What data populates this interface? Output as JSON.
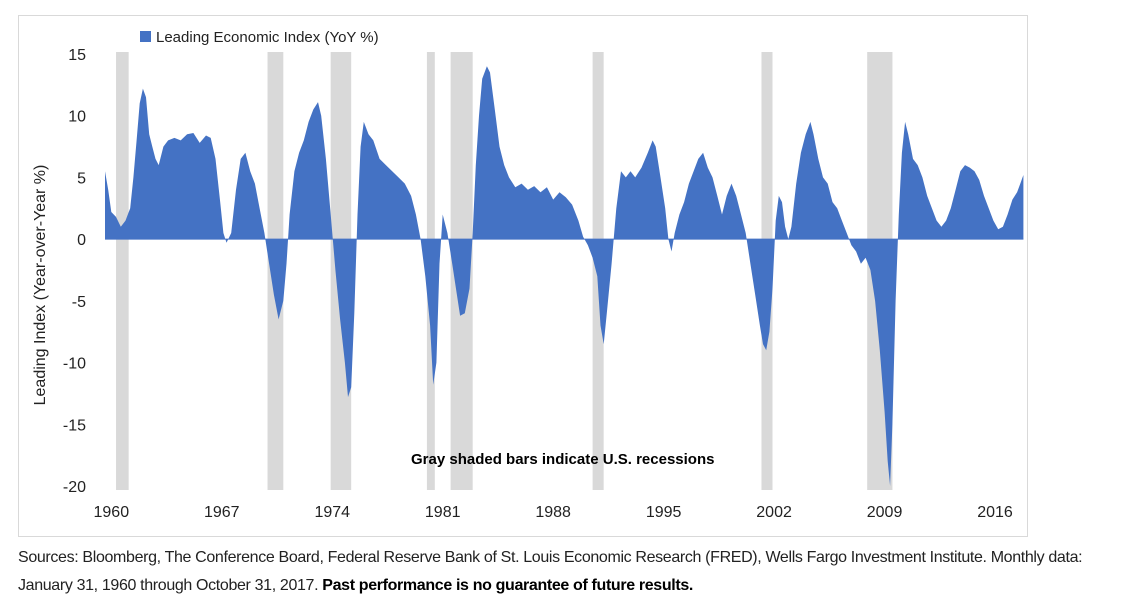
{
  "chart_data": {
    "type": "area",
    "title": "",
    "legend": {
      "label": "Leading Economic Index (YoY %)",
      "color": "#4472c4",
      "placement": "top-left"
    },
    "ylabel": "Leading Index (Year-over-Year %)",
    "xlabel": "",
    "xlim": [
      1959.6,
      2017.9
    ],
    "ylim": [
      -20,
      15
    ],
    "yticks": [
      15,
      10,
      5,
      0,
      -5,
      -10,
      -15,
      -20
    ],
    "xticks": [
      "1960",
      "1967",
      "1974",
      "1981",
      "1988",
      "1995",
      "2002",
      "2009",
      "2016"
    ],
    "xtick_values": [
      1960,
      1967,
      1974,
      1981,
      1988,
      1995,
      2002,
      2009,
      2016
    ],
    "grid": false,
    "annotation": "Gray shaded bars indicate U.S. recessions",
    "recession_color": "#d9d9d9",
    "recessions": [
      [
        1960.3,
        1961.1
      ],
      [
        1969.9,
        1970.9
      ],
      [
        1973.9,
        1975.2
      ],
      [
        1980.0,
        1980.5
      ],
      [
        1981.5,
        1982.9
      ],
      [
        1990.5,
        1991.2
      ],
      [
        2001.2,
        2001.9
      ],
      [
        2007.9,
        2009.5
      ]
    ],
    "series": [
      {
        "name": "Leading Economic Index (YoY %)",
        "color": "#4472c4",
        "points": [
          [
            1959.6,
            5.5
          ],
          [
            1959.8,
            4.0
          ],
          [
            1960.0,
            2.2
          ],
          [
            1960.3,
            1.8
          ],
          [
            1960.6,
            1.0
          ],
          [
            1960.9,
            1.5
          ],
          [
            1961.2,
            2.5
          ],
          [
            1961.4,
            5.0
          ],
          [
            1961.6,
            8.0
          ],
          [
            1961.8,
            11.0
          ],
          [
            1962.0,
            12.2
          ],
          [
            1962.2,
            11.5
          ],
          [
            1962.4,
            8.5
          ],
          [
            1962.6,
            7.5
          ],
          [
            1962.8,
            6.5
          ],
          [
            1963.0,
            6.0
          ],
          [
            1963.3,
            7.5
          ],
          [
            1963.6,
            8.0
          ],
          [
            1964.0,
            8.2
          ],
          [
            1964.4,
            8.0
          ],
          [
            1964.8,
            8.5
          ],
          [
            1965.2,
            8.6
          ],
          [
            1965.6,
            7.8
          ],
          [
            1966.0,
            8.4
          ],
          [
            1966.3,
            8.2
          ],
          [
            1966.6,
            6.5
          ],
          [
            1966.9,
            3.0
          ],
          [
            1967.1,
            0.5
          ],
          [
            1967.3,
            -0.3
          ],
          [
            1967.6,
            0.5
          ],
          [
            1967.9,
            4.0
          ],
          [
            1968.2,
            6.5
          ],
          [
            1968.5,
            7.0
          ],
          [
            1968.8,
            5.5
          ],
          [
            1969.1,
            4.5
          ],
          [
            1969.4,
            2.5
          ],
          [
            1969.7,
            0.5
          ],
          [
            1970.0,
            -2.0
          ],
          [
            1970.3,
            -4.5
          ],
          [
            1970.6,
            -6.5
          ],
          [
            1970.9,
            -5.0
          ],
          [
            1971.1,
            -2.0
          ],
          [
            1971.3,
            2.0
          ],
          [
            1971.6,
            5.5
          ],
          [
            1971.9,
            7.0
          ],
          [
            1972.2,
            8.0
          ],
          [
            1972.5,
            9.5
          ],
          [
            1972.8,
            10.5
          ],
          [
            1973.1,
            11.1
          ],
          [
            1973.3,
            10.0
          ],
          [
            1973.6,
            6.5
          ],
          [
            1973.9,
            2.0
          ],
          [
            1974.2,
            -2.5
          ],
          [
            1974.5,
            -6.5
          ],
          [
            1974.8,
            -10.0
          ],
          [
            1975.0,
            -12.8
          ],
          [
            1975.2,
            -12.0
          ],
          [
            1975.4,
            -6.0
          ],
          [
            1975.6,
            2.0
          ],
          [
            1975.8,
            7.5
          ],
          [
            1976.0,
            9.5
          ],
          [
            1976.3,
            8.5
          ],
          [
            1976.6,
            8.0
          ],
          [
            1977.0,
            6.5
          ],
          [
            1977.4,
            6.0
          ],
          [
            1977.8,
            5.5
          ],
          [
            1978.2,
            5.0
          ],
          [
            1978.6,
            4.5
          ],
          [
            1979.0,
            3.5
          ],
          [
            1979.3,
            2.0
          ],
          [
            1979.6,
            0.0
          ],
          [
            1979.9,
            -3.0
          ],
          [
            1980.2,
            -7.0
          ],
          [
            1980.4,
            -11.8
          ],
          [
            1980.6,
            -10.0
          ],
          [
            1980.8,
            -2.0
          ],
          [
            1981.0,
            2.0
          ],
          [
            1981.3,
            0.5
          ],
          [
            1981.6,
            -2.0
          ],
          [
            1981.9,
            -4.5
          ],
          [
            1982.1,
            -6.2
          ],
          [
            1982.4,
            -6.0
          ],
          [
            1982.7,
            -4.0
          ],
          [
            1982.9,
            0.5
          ],
          [
            1983.1,
            6.0
          ],
          [
            1983.3,
            10.0
          ],
          [
            1983.5,
            13.0
          ],
          [
            1983.8,
            14.0
          ],
          [
            1984.0,
            13.5
          ],
          [
            1984.3,
            10.5
          ],
          [
            1984.6,
            7.5
          ],
          [
            1984.9,
            6.0
          ],
          [
            1985.2,
            5.0
          ],
          [
            1985.6,
            4.2
          ],
          [
            1986.0,
            4.5
          ],
          [
            1986.4,
            4.0
          ],
          [
            1986.8,
            4.3
          ],
          [
            1987.2,
            3.8
          ],
          [
            1987.6,
            4.2
          ],
          [
            1988.0,
            3.2
          ],
          [
            1988.4,
            3.8
          ],
          [
            1988.8,
            3.4
          ],
          [
            1989.2,
            2.8
          ],
          [
            1989.6,
            1.5
          ],
          [
            1989.9,
            0.2
          ],
          [
            1990.2,
            -0.5
          ],
          [
            1990.5,
            -1.5
          ],
          [
            1990.8,
            -3.0
          ],
          [
            1991.0,
            -7.0
          ],
          [
            1991.2,
            -8.5
          ],
          [
            1991.4,
            -6.0
          ],
          [
            1991.7,
            -2.0
          ],
          [
            1992.0,
            2.5
          ],
          [
            1992.3,
            5.5
          ],
          [
            1992.6,
            5.0
          ],
          [
            1992.9,
            5.5
          ],
          [
            1993.2,
            5.0
          ],
          [
            1993.6,
            5.8
          ],
          [
            1994.0,
            7.0
          ],
          [
            1994.3,
            8.0
          ],
          [
            1994.5,
            7.5
          ],
          [
            1994.8,
            5.0
          ],
          [
            1995.1,
            2.5
          ],
          [
            1995.3,
            0.0
          ],
          [
            1995.5,
            -1.0
          ],
          [
            1995.7,
            0.5
          ],
          [
            1996.0,
            2.0
          ],
          [
            1996.3,
            3.0
          ],
          [
            1996.6,
            4.5
          ],
          [
            1996.9,
            5.5
          ],
          [
            1997.2,
            6.5
          ],
          [
            1997.5,
            7.0
          ],
          [
            1997.8,
            5.8
          ],
          [
            1998.1,
            5.0
          ],
          [
            1998.4,
            3.5
          ],
          [
            1998.7,
            2.0
          ],
          [
            1999.0,
            3.5
          ],
          [
            1999.3,
            4.5
          ],
          [
            1999.6,
            3.5
          ],
          [
            1999.9,
            2.0
          ],
          [
            2000.2,
            0.5
          ],
          [
            2000.5,
            -2.0
          ],
          [
            2000.8,
            -4.5
          ],
          [
            2001.1,
            -7.0
          ],
          [
            2001.3,
            -8.5
          ],
          [
            2001.5,
            -9.0
          ],
          [
            2001.7,
            -7.5
          ],
          [
            2001.9,
            -4.0
          ],
          [
            2002.1,
            1.5
          ],
          [
            2002.3,
            3.5
          ],
          [
            2002.5,
            3.0
          ],
          [
            2002.7,
            1.0
          ],
          [
            2002.9,
            0.0
          ],
          [
            2003.1,
            1.0
          ],
          [
            2003.4,
            4.5
          ],
          [
            2003.7,
            7.0
          ],
          [
            2004.0,
            8.5
          ],
          [
            2004.3,
            9.5
          ],
          [
            2004.5,
            8.5
          ],
          [
            2004.8,
            6.5
          ],
          [
            2005.1,
            5.0
          ],
          [
            2005.4,
            4.5
          ],
          [
            2005.7,
            3.0
          ],
          [
            2006.0,
            2.5
          ],
          [
            2006.3,
            1.5
          ],
          [
            2006.6,
            0.5
          ],
          [
            2006.9,
            -0.5
          ],
          [
            2007.2,
            -1.0
          ],
          [
            2007.5,
            -2.0
          ],
          [
            2007.8,
            -1.5
          ],
          [
            2008.1,
            -2.5
          ],
          [
            2008.4,
            -5.0
          ],
          [
            2008.7,
            -9.0
          ],
          [
            2009.0,
            -14.0
          ],
          [
            2009.2,
            -18.0
          ],
          [
            2009.35,
            -20.0
          ],
          [
            2009.5,
            -15.0
          ],
          [
            2009.7,
            -5.0
          ],
          [
            2009.9,
            2.0
          ],
          [
            2010.1,
            7.0
          ],
          [
            2010.3,
            9.5
          ],
          [
            2010.5,
            8.5
          ],
          [
            2010.8,
            6.5
          ],
          [
            2011.1,
            6.0
          ],
          [
            2011.4,
            5.0
          ],
          [
            2011.7,
            3.5
          ],
          [
            2012.0,
            2.5
          ],
          [
            2012.3,
            1.5
          ],
          [
            2012.6,
            1.0
          ],
          [
            2012.9,
            1.5
          ],
          [
            2013.2,
            2.5
          ],
          [
            2013.5,
            4.0
          ],
          [
            2013.8,
            5.5
          ],
          [
            2014.1,
            6.0
          ],
          [
            2014.4,
            5.8
          ],
          [
            2014.7,
            5.5
          ],
          [
            2015.0,
            4.8
          ],
          [
            2015.3,
            3.5
          ],
          [
            2015.6,
            2.5
          ],
          [
            2015.9,
            1.5
          ],
          [
            2016.2,
            0.8
          ],
          [
            2016.5,
            1.0
          ],
          [
            2016.8,
            2.0
          ],
          [
            2017.1,
            3.2
          ],
          [
            2017.4,
            3.8
          ],
          [
            2017.6,
            4.5
          ],
          [
            2017.8,
            5.2
          ]
        ]
      }
    ]
  },
  "footer": {
    "source_text": "Sources: Bloomberg, The Conference Board, Federal Reserve Bank of St. Louis Economic Research (FRED), Wells Fargo Investment Institute. Monthly data:  January 31, 1960 through October 31, 2017. ",
    "disclaimer": "Past performance is no guarantee of future results."
  }
}
